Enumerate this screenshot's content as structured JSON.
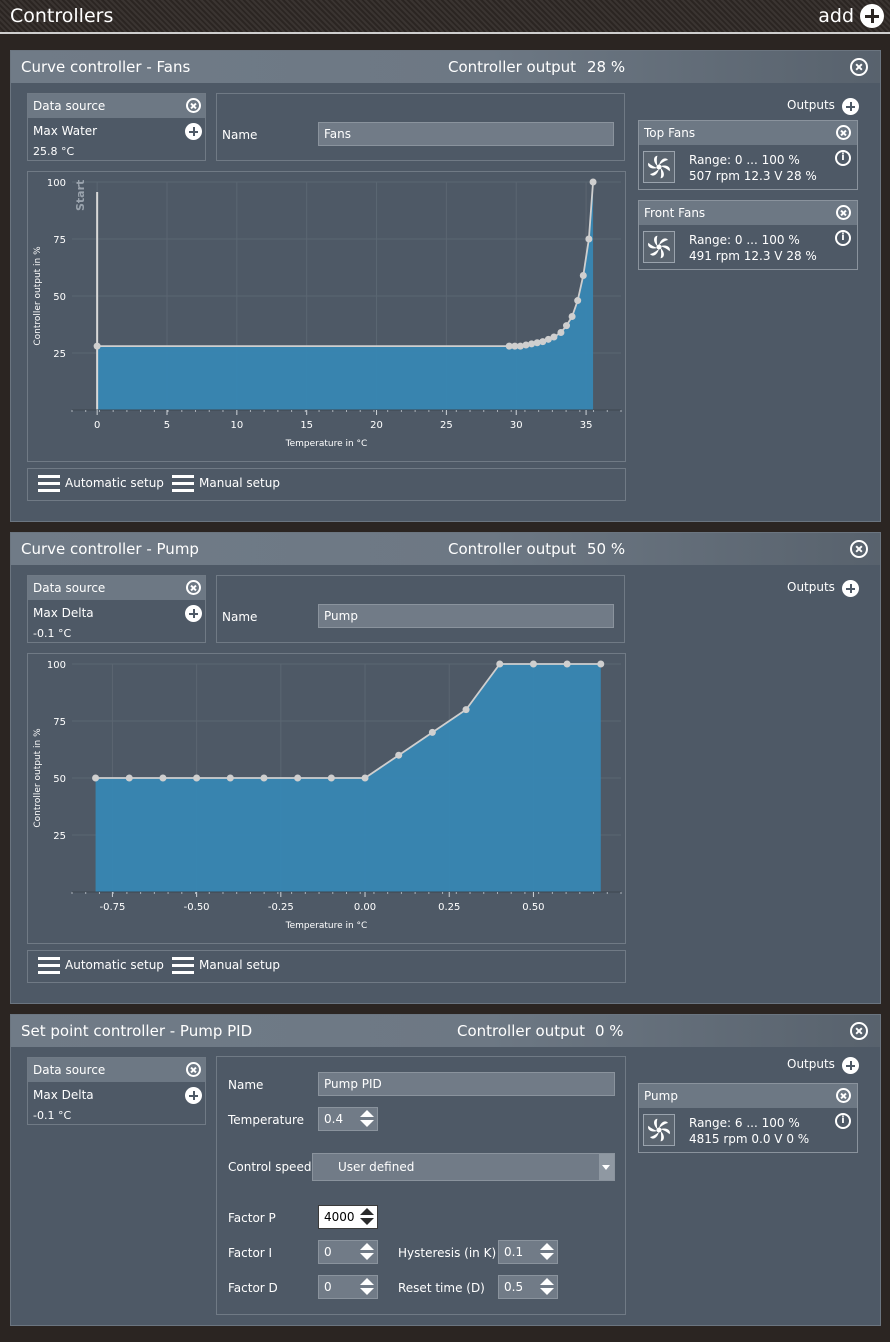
{
  "app": {
    "title": "Controllers",
    "add_label": "add"
  },
  "colors": {
    "fill": "#3787b3",
    "line": "#cfcfcf",
    "panel": "#4e5966"
  },
  "panels": [
    {
      "title": "Curve controller  -  Fans",
      "output_label": "Controller output",
      "output_value": "28 %",
      "data_source": {
        "label": "Data source",
        "source": "Max Water",
        "value": "25.8 °C"
      },
      "name_label": "Name",
      "name_value": "Fans",
      "outputs_label": "Outputs",
      "outputs": [
        {
          "name": "Top Fans",
          "range": "Range:  0 ... 100  %",
          "stats": "507 rpm  12.3 V  28 %"
        },
        {
          "name": "Front Fans",
          "range": "Range:  0 ... 100  %",
          "stats": "491 rpm  12.3 V  28 %"
        }
      ],
      "setup": {
        "automatic": "Automatic setup",
        "manual": "Manual setup"
      }
    },
    {
      "title": "Curve controller  -  Pump",
      "output_label": "Controller output",
      "output_value": "50 %",
      "data_source": {
        "label": "Data source",
        "source": "Max Delta",
        "value": "-0.1 °C"
      },
      "name_label": "Name",
      "name_value": "Pump",
      "outputs_label": "Outputs",
      "setup": {
        "automatic": "Automatic setup",
        "manual": "Manual setup"
      }
    },
    {
      "title": "Set point controller  -  Pump PID",
      "output_label": "Controller output",
      "output_value": "0 %",
      "data_source": {
        "label": "Data source",
        "source": "Max Delta",
        "value": "-0.1 °C"
      },
      "name_label": "Name",
      "name_value": "Pump PID",
      "temperature_label": "Temperature",
      "temperature_value": "0.4",
      "control_speed_label": "Control speed",
      "control_speed_value": "User defined",
      "factor_p_label": "Factor P",
      "factor_p_value": "4000",
      "factor_i_label": "Factor I",
      "factor_i_value": "0",
      "factor_d_label": "Factor D",
      "factor_d_value": "0",
      "hysteresis_label": "Hysteresis (in K)",
      "hysteresis_value": "0.1",
      "reset_time_label": "Reset time (D)",
      "reset_time_value": "0.5",
      "outputs_label": "Outputs",
      "outputs": [
        {
          "name": "Pump",
          "range": "Range:  6 ... 100  %",
          "stats": "4815 rpm  0.0 V  0 %"
        }
      ]
    }
  ],
  "chart_data": [
    {
      "type": "area",
      "xlabel": "Temperature in °C",
      "ylabel": "Controller output in %",
      "xlim": [
        -1.8,
        37.5
      ],
      "ylim": [
        0,
        100
      ],
      "xticks": [
        0,
        5,
        10,
        15,
        20,
        25,
        30,
        35
      ],
      "xtick_labels": [
        "0",
        "5",
        "10",
        "15",
        "20",
        "25",
        "30",
        "35"
      ],
      "yticks": [
        25,
        50,
        75,
        100
      ],
      "ytick_labels": [
        "25",
        "50",
        "75",
        "100"
      ],
      "start_marker": {
        "x": 0,
        "label": "Start"
      },
      "x": [
        0,
        29.5,
        29.9,
        30.3,
        30.7,
        31.1,
        31.5,
        31.9,
        32.3,
        32.7,
        33.2,
        33.6,
        34.0,
        34.4,
        34.8,
        35.2,
        35.5
      ],
      "y": [
        28,
        28,
        28,
        28,
        28.5,
        29,
        29.5,
        30,
        31,
        32,
        34,
        37,
        41,
        48,
        59,
        75,
        100
      ]
    },
    {
      "type": "area",
      "xlabel": "Temperature in °C",
      "ylabel": "Controller output in %",
      "xlim": [
        -0.87,
        0.76
      ],
      "ylim": [
        0,
        100
      ],
      "xticks": [
        -0.75,
        -0.5,
        -0.25,
        0,
        0.25,
        0.5
      ],
      "xtick_labels": [
        "-0.75",
        "-0.50",
        "-0.25",
        "0.00",
        "0.25",
        "0.50"
      ],
      "yticks": [
        25,
        50,
        75,
        100
      ],
      "ytick_labels": [
        "25",
        "50",
        "75",
        "100"
      ],
      "x": [
        -0.8,
        -0.7,
        -0.6,
        -0.5,
        -0.4,
        -0.3,
        -0.2,
        -0.1,
        0.0,
        0.1,
        0.2,
        0.3,
        0.4,
        0.5,
        0.6,
        0.7
      ],
      "y": [
        50,
        50,
        50,
        50,
        50,
        50,
        50,
        50,
        50,
        60,
        70,
        80,
        100,
        100,
        100,
        100
      ]
    }
  ]
}
